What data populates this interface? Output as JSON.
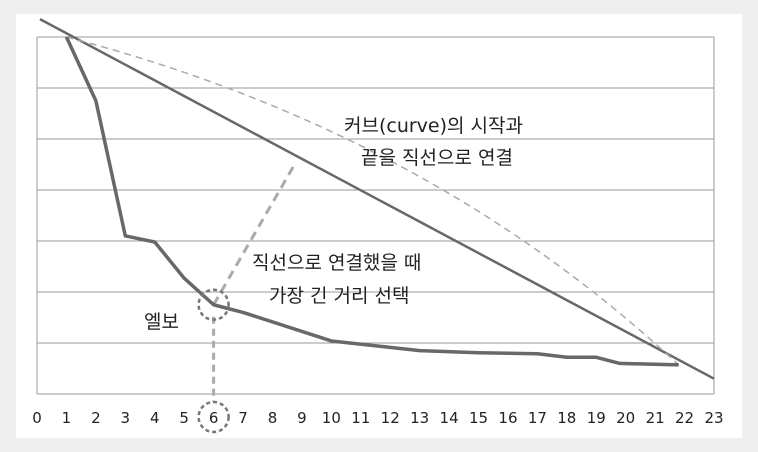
{
  "chart_data": {
    "type": "line",
    "title": "",
    "xlabel": "",
    "ylabel": "",
    "x_ticks": [
      0,
      1,
      2,
      3,
      4,
      5,
      6,
      7,
      8,
      9,
      10,
      11,
      12,
      13,
      14,
      15,
      16,
      17,
      18,
      19,
      20,
      21,
      22,
      23
    ],
    "xlim": [
      0,
      23
    ],
    "grid": true,
    "series": [
      {
        "points": [
          [
            1,
            7.0
          ],
          [
            2,
            5.75
          ],
          [
            3,
            3.1
          ],
          [
            4,
            2.98
          ],
          [
            5,
            2.27
          ],
          [
            6,
            1.75
          ],
          [
            7,
            1.6
          ],
          [
            10,
            1.04
          ],
          [
            13,
            0.85
          ],
          [
            15,
            0.81
          ],
          [
            17,
            0.79
          ],
          [
            18,
            0.72
          ],
          [
            19,
            0.72
          ],
          [
            19.8,
            0.6
          ],
          [
            21.8,
            0.57
          ]
        ],
        "color": "#686868"
      }
    ],
    "reference_lines": [
      {
        "points": [
          [
            0.1,
            7.35
          ],
          [
            23,
            0.3
          ]
        ],
        "style": "solid",
        "color": "#686868"
      },
      {
        "points": [
          [
            1,
            7.0
          ],
          [
            21.8,
            0.57
          ]
        ],
        "style": "dashed-curve",
        "color": "#aaaaaa"
      }
    ],
    "elbow": {
      "x": 6,
      "y": 1.75,
      "label": "엘보"
    },
    "annotations": {
      "curve_line1": "커브(curve)의 시작과",
      "curve_line2": "끝을 직선으로 연결",
      "select_line1": "직선으로 연결했을 때",
      "select_line2": "가장 긴 거리 선택"
    },
    "colors": {
      "main_line": "#686868",
      "dashed": "#aaaaaa",
      "grid": "#9a9a9a",
      "elbow_circle": "#777777"
    }
  }
}
